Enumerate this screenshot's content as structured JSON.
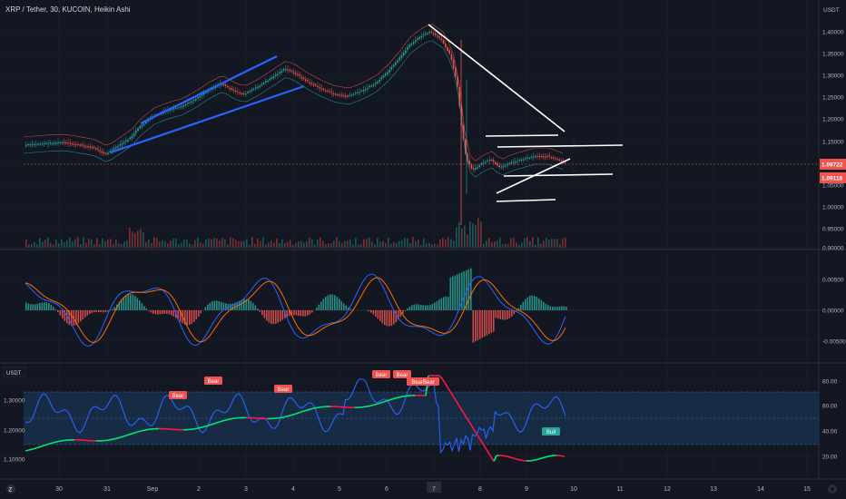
{
  "header": {
    "symbol_title": "XRP / Tether, 30, KUCOIN, Heikin Ashi",
    "currency": "USDT"
  },
  "colors": {
    "background": "#131722",
    "grid": "#1e2230",
    "bull": "#26a69a",
    "bear": "#ef5350",
    "trendline_blue": "#2962ff",
    "drawing_white": "#ffffff",
    "macd_line": "#2962ff",
    "signal_line": "#ff6d00",
    "rsi_line": "#2962ff",
    "rsi_band": "#1c3d63",
    "price_line": "#ef5350"
  },
  "main_pane": {
    "price_ticks": [
      "1.40000",
      "1.35000",
      "1.30000",
      "1.25000",
      "1.20000",
      "1.15000",
      "1.10000",
      "1.05000",
      "1.00000",
      "0.95000",
      "0.90000"
    ],
    "price_tags": [
      "1.09722",
      "1.09118"
    ]
  },
  "macd_pane": {
    "ticks": [
      "0.00500",
      "0.00000",
      "-0.00500"
    ]
  },
  "rsi_pane": {
    "label": "USDT",
    "left_ticks": [
      "1.30000",
      "1.20000",
      "1.10000"
    ],
    "right_ticks": [
      "80.00",
      "60.00",
      "40.00",
      "20.00"
    ],
    "badges": [
      {
        "text": "Bear",
        "type": "bear"
      },
      {
        "text": "Bear",
        "type": "bear"
      },
      {
        "text": "Bear",
        "type": "bear"
      },
      {
        "text": "Bear",
        "type": "bear"
      },
      {
        "text": "Bear",
        "type": "bear"
      },
      {
        "text": "BearBear",
        "type": "bear"
      },
      {
        "text": "Bull",
        "type": "bull"
      }
    ]
  },
  "time_axis": {
    "labels": [
      "30",
      "31",
      "Sep",
      "2",
      "3",
      "4",
      "5",
      "6",
      "7",
      "8",
      "9",
      "10",
      "11",
      "12",
      "13",
      "14",
      "15"
    ],
    "highlight": "7"
  }
}
